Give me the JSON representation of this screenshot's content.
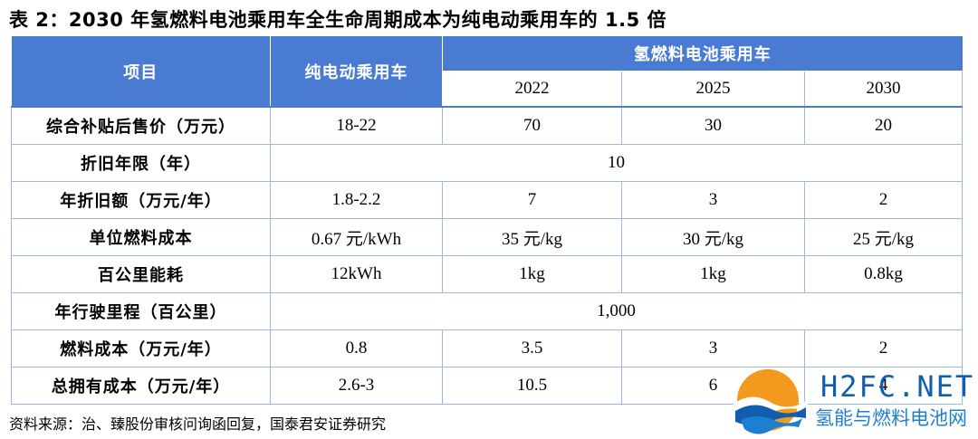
{
  "title": "表 2：2030 年氢燃料电池乘用车全生命周期成本为纯电动乘用车的 1.5 倍",
  "header": {
    "item": "项目",
    "ev": "纯电动乘用车",
    "fcv": "氢燃料电池乘用车",
    "years": [
      "2022",
      "2025",
      "2030"
    ]
  },
  "rows": [
    {
      "label": "综合补贴后售价（万元）",
      "ev": "18-22",
      "y2022": "70",
      "y2025": "30",
      "y2030": "20"
    },
    {
      "label": "折旧年限（年）",
      "merged": "10"
    },
    {
      "label": "年折旧额（万元/年）",
      "ev": "1.8-2.2",
      "y2022": "7",
      "y2025": "3",
      "y2030": "2"
    },
    {
      "label": "单位燃料成本",
      "ev": "0.67 元/kWh",
      "y2022": "35 元/kg",
      "y2025": "30 元/kg",
      "y2030": "25 元/kg"
    },
    {
      "label": "百公里能耗",
      "ev": "12kWh",
      "y2022": "1kg",
      "y2025": "1kg",
      "y2030": "0.8kg"
    },
    {
      "label": "年行驶里程（百公里）",
      "merged": "1,000"
    },
    {
      "label": "燃料成本（万元/年）",
      "ev": "0.8",
      "y2022": "3.5",
      "y2025": "3",
      "y2030": "2"
    },
    {
      "label": "总拥有成本（万元/年）",
      "ev": "2.6-3",
      "y2022": "10.5",
      "y2025": "6",
      "y2030": "4"
    }
  ],
  "source": "资料来源：治、臻股份审核问询函回复，国泰君安证券研究",
  "watermark": {
    "logo_text": "H2FC.NET",
    "sub_text": "氢能与燃料电池网",
    "colors": {
      "blue": "#0f5fae",
      "orange": "#f39a1e",
      "light_blue": "#1e7fd0"
    }
  },
  "colors": {
    "header_bg": "#4a7bd3",
    "border": "#9eb7df"
  }
}
